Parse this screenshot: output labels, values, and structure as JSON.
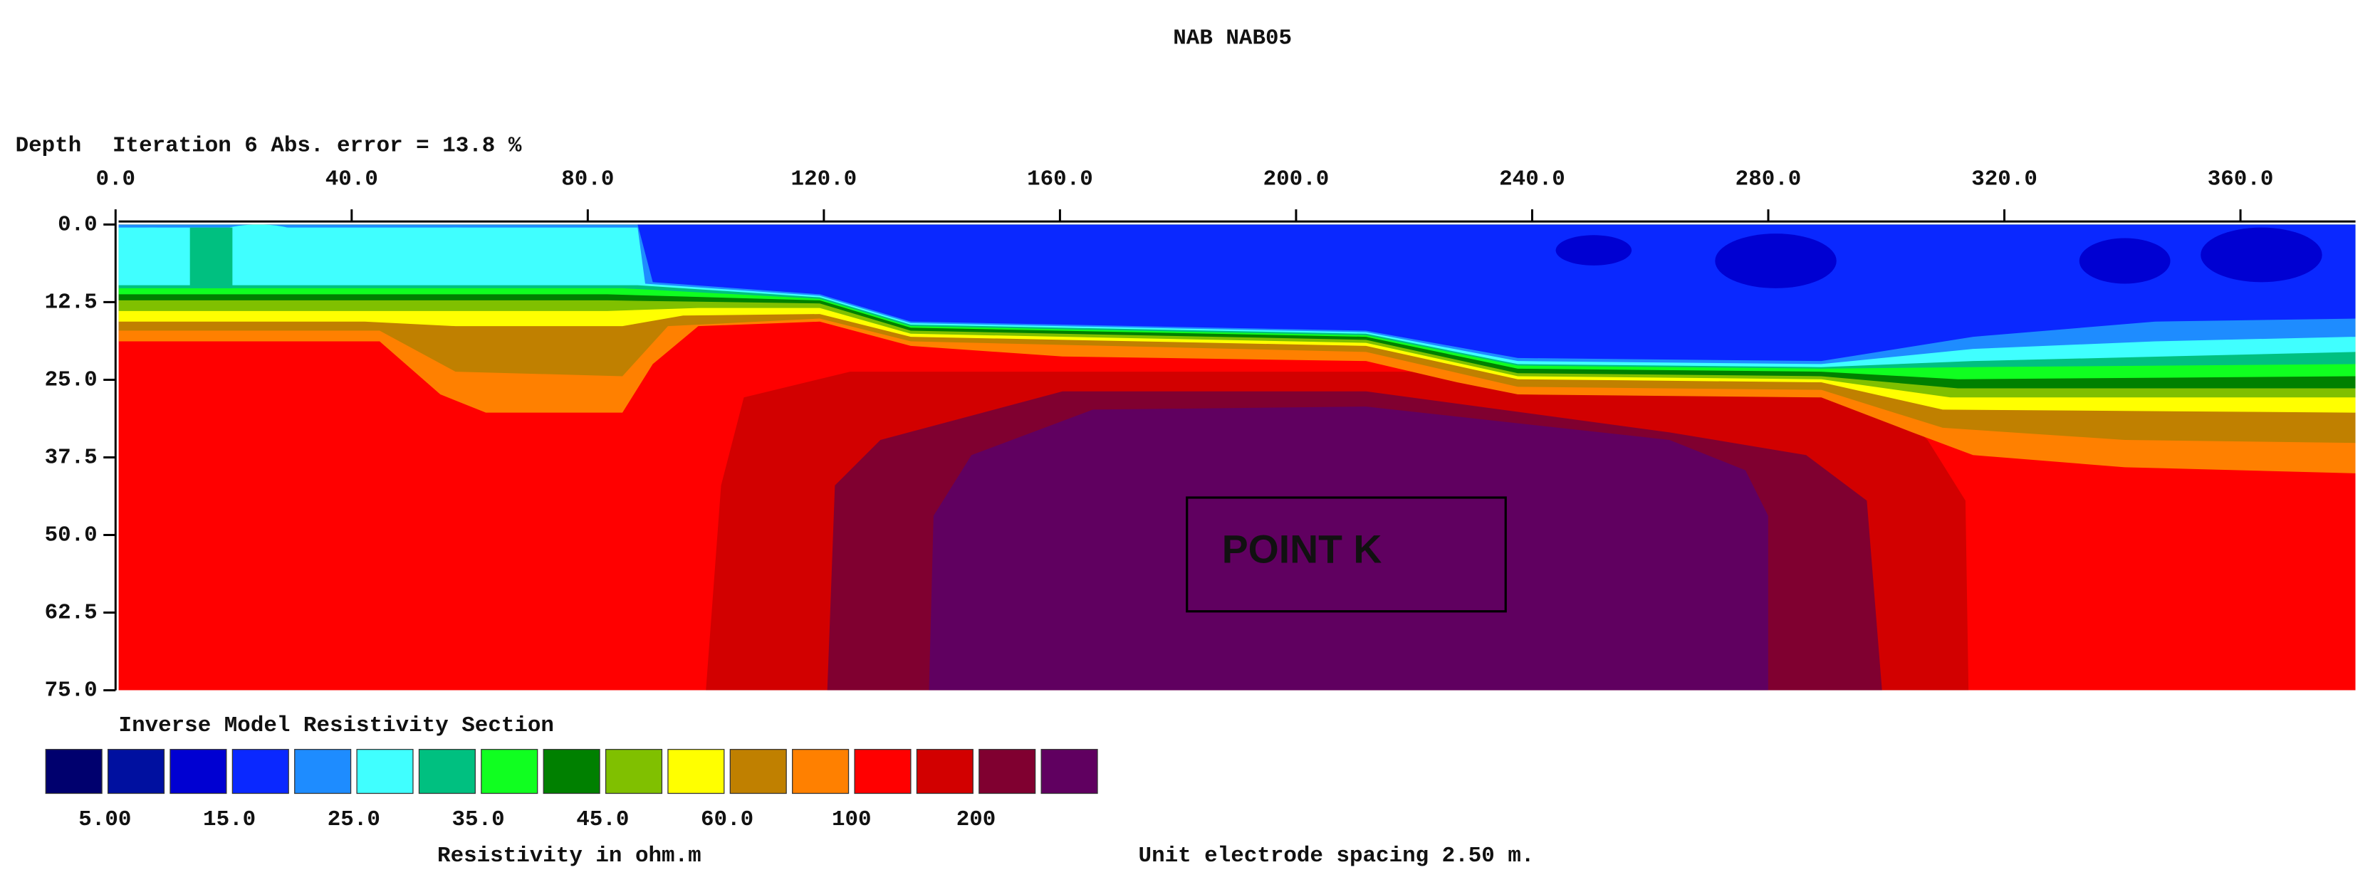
{
  "chart_data": {
    "type": "contour",
    "title": "NAB NAB05",
    "y_label": "Depth",
    "subtitle": "Iteration 6 Abs. error = 13.8 %",
    "xlim": [
      0,
      380
    ],
    "xticks": [
      {
        "value": 0,
        "label": "0.0"
      },
      {
        "value": 40,
        "label": "40.0"
      },
      {
        "value": 80,
        "label": "80.0"
      },
      {
        "value": 120,
        "label": "120.0"
      },
      {
        "value": 160,
        "label": "160.0"
      },
      {
        "value": 200,
        "label": "200.0"
      },
      {
        "value": 240,
        "label": "240.0"
      },
      {
        "value": 280,
        "label": "280.0"
      },
      {
        "value": 320,
        "label": "320.0"
      },
      {
        "value": 360,
        "label": "360.0"
      }
    ],
    "ylim": [
      0,
      75
    ],
    "y_inverted": true,
    "yticks": [
      {
        "value": 0,
        "label": "0.0"
      },
      12.5,
      {
        "value": 25,
        "label": "25.0"
      },
      37.5,
      {
        "value": 50,
        "label": "50.0"
      },
      62.5,
      {
        "value": 75,
        "label": "75.0"
      }
    ],
    "annotations": [
      "POINT K"
    ],
    "legend_title": "Inverse Model Resistivity Section",
    "colorbar": {
      "colors": [
        "#00006e",
        "#0010a0",
        "#0000d2",
        "#0a28ff",
        "#1e8cff",
        "#40ffff",
        "#00c080",
        "#10ff20",
        "#008000",
        "#80c000",
        "#ffff00",
        "#c08000",
        "#ff8000",
        "#ff0000",
        "#d20000",
        "#800030",
        "#600060"
      ],
      "labels": [
        "5.00",
        "15.0",
        "25.0",
        "35.0",
        "45.0",
        "60.0",
        "100",
        "200"
      ]
    },
    "colorbar_label": "Resistivity in ohm.m",
    "note": "Unit electrode spacing 2.50 m."
  }
}
